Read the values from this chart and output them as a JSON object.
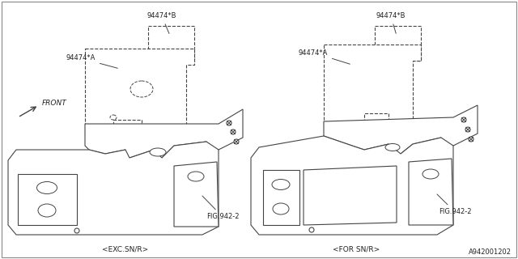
{
  "bg_color": "#ffffff",
  "line_color": "#444444",
  "text_color": "#222222",
  "fig_width": 6.4,
  "fig_height": 3.2,
  "dpi": 100,
  "labels": {
    "94474B_left": "94474*B",
    "94474A_left": "94474*A",
    "fig942_left": "FIG.942-2",
    "exc_label": "<EXC.SN/R>",
    "94474B_right": "94474*B",
    "94474A_right": "94474*A",
    "fig942_right": "FIG.942-2",
    "for_label": "<FOR SN/R>",
    "front_label": "FRONT",
    "part_num": "A942001202"
  }
}
